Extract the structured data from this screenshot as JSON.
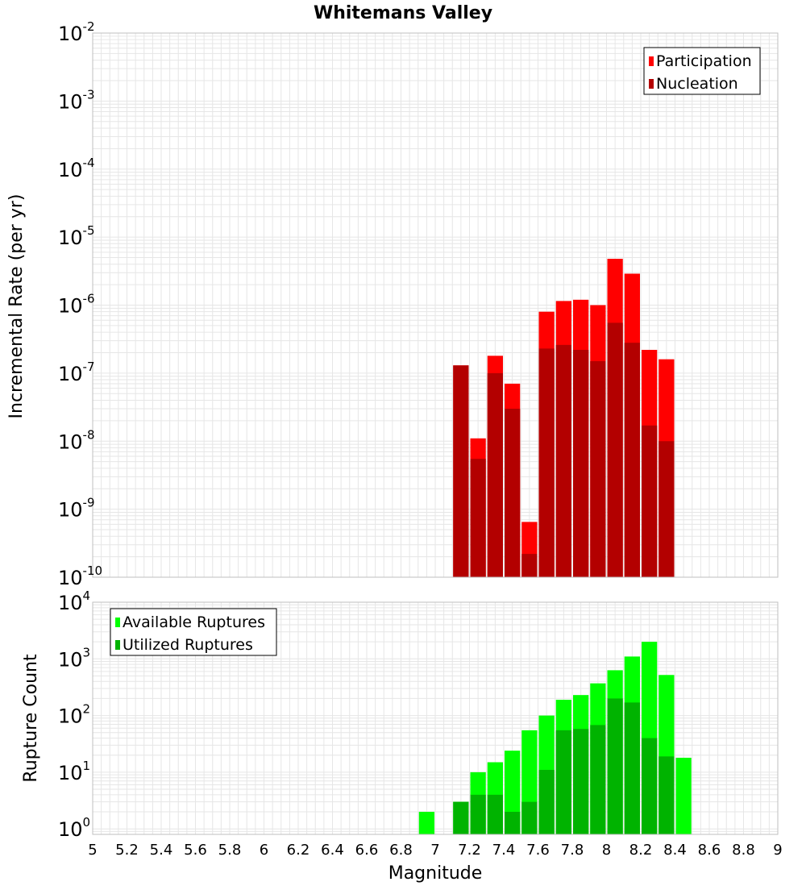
{
  "title": "Whitemans Valley",
  "xlabel": "Magnitude",
  "x_ticks": [
    "5",
    "5.2",
    "5.4",
    "5.6",
    "5.8",
    "6",
    "6.2",
    "6.4",
    "6.6",
    "6.8",
    "7",
    "7.2",
    "7.4",
    "7.6",
    "7.8",
    "8",
    "8.2",
    "8.4",
    "8.6",
    "8.8",
    "9"
  ],
  "colors": {
    "participation": "#ff0000",
    "nucleation": "#b30000",
    "available": "#00ff00",
    "utilized": "#00b300",
    "grid": "#e6e6e6",
    "frame": "#bfbfbf"
  },
  "chart_data": [
    {
      "type": "bar",
      "ylabel": "Incremental Rate (per yr)",
      "y_scale": "log",
      "ylim": [
        1e-10,
        0.01
      ],
      "xlim": [
        5,
        9
      ],
      "y_tick_exponents": [
        "-10",
        "-9",
        "-8",
        "-7",
        "-6",
        "-5",
        "-4",
        "-3",
        "-2"
      ],
      "legend_position": "top-right",
      "x": [
        7.15,
        7.25,
        7.35,
        7.45,
        7.55,
        7.65,
        7.75,
        7.85,
        7.95,
        8.05,
        8.15,
        8.25,
        8.35
      ],
      "series": [
        {
          "name": "Participation",
          "color_key": "participation",
          "values": [
            1.3e-07,
            1.1e-08,
            1.8e-07,
            7e-08,
            6.5e-10,
            8e-07,
            1.15e-06,
            1.2e-06,
            1e-06,
            4.8e-06,
            2.9e-06,
            2.2e-07,
            1.6e-07
          ]
        },
        {
          "name": "Nucleation",
          "color_key": "nucleation",
          "values": [
            1.3e-07,
            5.5e-09,
            1e-07,
            3e-08,
            2.2e-10,
            2.3e-07,
            2.6e-07,
            2.2e-07,
            1.5e-07,
            5.5e-07,
            2.8e-07,
            1.7e-08,
            1e-08
          ]
        }
      ]
    },
    {
      "type": "bar",
      "ylabel": "Rupture Count",
      "y_scale": "log",
      "ylim": [
        0.8,
        10000
      ],
      "xlim": [
        5,
        9
      ],
      "y_tick_exponents": [
        "0",
        "1",
        "2",
        "3",
        "4"
      ],
      "legend_position": "top-left",
      "x": [
        6.95,
        7.15,
        7.25,
        7.35,
        7.45,
        7.55,
        7.65,
        7.75,
        7.85,
        7.95,
        8.05,
        8.15,
        8.25,
        8.35,
        8.45
      ],
      "series": [
        {
          "name": "Available Ruptures",
          "color_key": "available",
          "values": [
            2,
            3,
            10,
            15,
            24,
            55,
            100,
            190,
            230,
            370,
            630,
            1100,
            2000,
            520,
            18
          ]
        },
        {
          "name": "Utilized Ruptures",
          "color_key": "utilized",
          "values": [
            0,
            3,
            4,
            4,
            2,
            3,
            11,
            55,
            58,
            68,
            200,
            170,
            40,
            19,
            0
          ]
        }
      ]
    }
  ]
}
